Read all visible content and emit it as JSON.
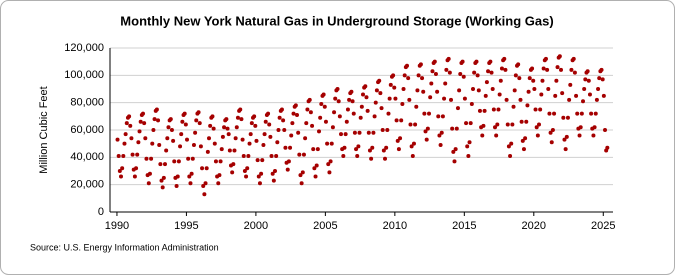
{
  "chart_data": {
    "type": "scatter",
    "title": "Monthly New York Natural Gas in Underground Storage (Working Gas)",
    "y_label": "Million Cubic Feet",
    "source": "Source: U.S. Energy Information Administration",
    "color": "#a50000",
    "grid": true,
    "xlim": [
      1989.5,
      2025.7
    ],
    "ylim": [
      0,
      120000
    ],
    "xticks": [
      1990,
      1995,
      2000,
      2005,
      2010,
      2015,
      2020,
      2025
    ],
    "yticks": [
      0,
      {
        "value": 20000,
        "label": "20,000"
      },
      {
        "value": 40000,
        "label": "40,000"
      },
      {
        "value": 60000,
        "label": "60,000"
      },
      {
        "value": 80000,
        "label": "80,000"
      },
      {
        "value": 100000,
        "label": "100,000"
      },
      {
        "value": 120000,
        "label": "120,000"
      }
    ],
    "x": [
      1990.042,
      1990.125,
      1990.208,
      1990.292,
      1990.375,
      1990.458,
      1990.542,
      1990.625,
      1990.708,
      1990.792,
      1990.875,
      1990.958,
      1991.042,
      1991.125,
      1991.208,
      1991.292,
      1991.375,
      1991.458,
      1991.542,
      1991.625,
      1991.708,
      1991.792,
      1991.875,
      1991.958,
      1992.042,
      1992.125,
      1992.208,
      1992.292,
      1992.375,
      1992.458,
      1992.542,
      1992.625,
      1992.708,
      1992.792,
      1992.875,
      1992.958,
      1993.042,
      1993.125,
      1993.208,
      1993.292,
      1993.375,
      1993.458,
      1993.542,
      1993.625,
      1993.708,
      1993.792,
      1993.875,
      1993.958,
      1994.042,
      1994.125,
      1994.208,
      1994.292,
      1994.375,
      1994.458,
      1994.542,
      1994.625,
      1994.708,
      1994.792,
      1994.875,
      1994.958,
      1995.042,
      1995.125,
      1995.208,
      1995.292,
      1995.375,
      1995.458,
      1995.542,
      1995.625,
      1995.708,
      1995.792,
      1995.875,
      1995.958,
      1996.042,
      1996.125,
      1996.208,
      1996.292,
      1996.375,
      1996.458,
      1996.542,
      1996.625,
      1996.708,
      1996.792,
      1996.875,
      1996.958,
      1997.042,
      1997.125,
      1997.208,
      1997.292,
      1997.375,
      1997.458,
      1997.542,
      1997.625,
      1997.708,
      1997.792,
      1997.875,
      1997.958,
      1998.042,
      1998.125,
      1998.208,
      1998.292,
      1998.375,
      1998.458,
      1998.542,
      1998.625,
      1998.708,
      1998.792,
      1998.875,
      1998.958,
      1999.042,
      1999.125,
      1999.208,
      1999.292,
      1999.375,
      1999.458,
      1999.542,
      1999.625,
      1999.708,
      1999.792,
      1999.875,
      1999.958,
      2000.042,
      2000.125,
      2000.208,
      2000.292,
      2000.375,
      2000.458,
      2000.542,
      2000.625,
      2000.708,
      2000.792,
      2000.875,
      2000.958,
      2001.042,
      2001.125,
      2001.208,
      2001.292,
      2001.375,
      2001.458,
      2001.542,
      2001.625,
      2001.708,
      2001.792,
      2001.875,
      2001.958,
      2002.042,
      2002.125,
      2002.208,
      2002.292,
      2002.375,
      2002.458,
      2002.542,
      2002.625,
      2002.708,
      2002.792,
      2002.875,
      2002.958,
      2003.042,
      2003.125,
      2003.208,
      2003.292,
      2003.375,
      2003.458,
      2003.542,
      2003.625,
      2003.708,
      2003.792,
      2003.875,
      2003.958,
      2004.042,
      2004.125,
      2004.208,
      2004.292,
      2004.375,
      2004.458,
      2004.542,
      2004.625,
      2004.708,
      2004.792,
      2004.875,
      2004.958,
      2005.042,
      2005.125,
      2005.208,
      2005.292,
      2005.375,
      2005.458,
      2005.542,
      2005.625,
      2005.708,
      2005.792,
      2005.875,
      2005.958,
      2006.042,
      2006.125,
      2006.208,
      2006.292,
      2006.375,
      2006.458,
      2006.542,
      2006.625,
      2006.708,
      2006.792,
      2006.875,
      2006.958,
      2007.042,
      2007.125,
      2007.208,
      2007.292,
      2007.375,
      2007.458,
      2007.542,
      2007.625,
      2007.708,
      2007.792,
      2007.875,
      2007.958,
      2008.042,
      2008.125,
      2008.208,
      2008.292,
      2008.375,
      2008.458,
      2008.542,
      2008.625,
      2008.708,
      2008.792,
      2008.875,
      2008.958,
      2009.042,
      2009.125,
      2009.208,
      2009.292,
      2009.375,
      2009.458,
      2009.542,
      2009.625,
      2009.708,
      2009.792,
      2009.875,
      2009.958,
      2010.042,
      2010.125,
      2010.208,
      2010.292,
      2010.375,
      2010.458,
      2010.542,
      2010.625,
      2010.708,
      2010.792,
      2010.875,
      2010.958,
      2011.042,
      2011.125,
      2011.208,
      2011.292,
      2011.375,
      2011.458,
      2011.542,
      2011.625,
      2011.708,
      2011.792,
      2011.875,
      2011.958,
      2012.042,
      2012.125,
      2012.208,
      2012.292,
      2012.375,
      2012.458,
      2012.542,
      2012.625,
      2012.708,
      2012.792,
      2012.875,
      2012.958,
      2013.042,
      2013.125,
      2013.208,
      2013.292,
      2013.375,
      2013.458,
      2013.542,
      2013.625,
      2013.708,
      2013.792,
      2013.875,
      2013.958,
      2014.042,
      2014.125,
      2014.208,
      2014.292,
      2014.375,
      2014.458,
      2014.542,
      2014.625,
      2014.708,
      2014.792,
      2014.875,
      2014.958,
      2015.042,
      2015.125,
      2015.208,
      2015.292,
      2015.375,
      2015.458,
      2015.542,
      2015.625,
      2015.708,
      2015.792,
      2015.875,
      2015.958,
      2016.042,
      2016.125,
      2016.208,
      2016.292,
      2016.375,
      2016.458,
      2016.542,
      2016.625,
      2016.708,
      2016.792,
      2016.875,
      2016.958,
      2017.042,
      2017.125,
      2017.208,
      2017.292,
      2017.375,
      2017.458,
      2017.542,
      2017.625,
      2017.708,
      2017.792,
      2017.875,
      2017.958,
      2018.042,
      2018.125,
      2018.208,
      2018.292,
      2018.375,
      2018.458,
      2018.542,
      2018.625,
      2018.708,
      2018.792,
      2018.875,
      2018.958,
      2019.042,
      2019.125,
      2019.208,
      2019.292,
      2019.375,
      2019.458,
      2019.542,
      2019.625,
      2019.708,
      2019.792,
      2019.875,
      2019.958,
      2020.042,
      2020.125,
      2020.208,
      2020.292,
      2020.375,
      2020.458,
      2020.542,
      2020.625,
      2020.708,
      2020.792,
      2020.875,
      2020.958,
      2021.042,
      2021.125,
      2021.208,
      2021.292,
      2021.375,
      2021.458,
      2021.542,
      2021.625,
      2021.708,
      2021.792,
      2021.875,
      2021.958,
      2022.042,
      2022.125,
      2022.208,
      2022.292,
      2022.375,
      2022.458,
      2022.542,
      2022.625,
      2022.708,
      2022.792,
      2022.875,
      2022.958,
      2023.042,
      2023.125,
      2023.208,
      2023.292,
      2023.375,
      2023.458,
      2023.542,
      2023.625,
      2023.708,
      2023.792,
      2023.875,
      2023.958,
      2024.042,
      2024.125,
      2024.208,
      2024.292,
      2024.375,
      2024.458,
      2024.542,
      2024.625,
      2024.708,
      2024.792,
      2024.875,
      2024.958,
      2025.042,
      2025.125,
      2025.208,
      2025.292
    ],
    "values": [
      53000,
      41000,
      30000,
      26000,
      32000,
      41000,
      50000,
      57000,
      65000,
      69000,
      70000,
      63000,
      54000,
      42000,
      31000,
      26000,
      32000,
      42000,
      51000,
      59000,
      66000,
      71000,
      72000,
      65000,
      54000,
      39000,
      27000,
      21000,
      28000,
      39000,
      50000,
      60000,
      68000,
      74000,
      75000,
      67000,
      49000,
      35000,
      23000,
      18000,
      25000,
      35000,
      45000,
      54000,
      62000,
      67000,
      68000,
      60000,
      52000,
      37000,
      25000,
      19000,
      26000,
      37000,
      48000,
      57000,
      66000,
      71000,
      72000,
      64000,
      53000,
      39000,
      26000,
      21000,
      28000,
      39000,
      49000,
      58000,
      67000,
      72000,
      73000,
      65000,
      48000,
      32000,
      19000,
      13000,
      21000,
      32000,
      44000,
      54000,
      63000,
      69000,
      70000,
      61000,
      50000,
      37000,
      26000,
      21000,
      27000,
      37000,
      46000,
      55000,
      62000,
      67000,
      68000,
      61000,
      57000,
      45000,
      34000,
      29000,
      35000,
      45000,
      54000,
      62000,
      69000,
      74000,
      75000,
      68000,
      53000,
      41000,
      30000,
      26000,
      32000,
      41000,
      50000,
      57000,
      65000,
      69000,
      70000,
      63000,
      52000,
      38000,
      26000,
      21000,
      28000,
      38000,
      49000,
      57000,
      66000,
      71000,
      72000,
      64000,
      55000,
      41000,
      28000,
      23000,
      30000,
      41000,
      51000,
      60000,
      69000,
      74000,
      75000,
      67000,
      60000,
      47000,
      36000,
      31000,
      37000,
      47000,
      56000,
      65000,
      72000,
      77000,
      78000,
      71000,
      58000,
      42000,
      27000,
      21000,
      29000,
      42000,
      54000,
      65000,
      75000,
      81000,
      82000,
      73000,
      63000,
      46000,
      32000,
      26000,
      34000,
      46000,
      59000,
      69000,
      79000,
      85000,
      86000,
      77000,
      66000,
      50000,
      35000,
      29000,
      37000,
      50000,
      62000,
      73000,
      83000,
      89000,
      90000,
      81000,
      70000,
      57000,
      46000,
      41000,
      47000,
      57000,
      66000,
      75000,
      82000,
      87000,
      88000,
      81000,
      72000,
      58000,
      46000,
      41000,
      48000,
      58000,
      69000,
      77000,
      86000,
      91000,
      92000,
      84000,
      74000,
      58000,
      45000,
      39000,
      47000,
      58000,
      70000,
      80000,
      89000,
      95000,
      96000,
      87000,
      76000,
      60000,
      45000,
      39000,
      47000,
      60000,
      72000,
      83000,
      93000,
      99000,
      100000,
      91000,
      83000,
      67000,
      52000,
      46000,
      54000,
      67000,
      79000,
      90000,
      100000,
      106000,
      107000,
      98000,
      82000,
      64000,
      48000,
      41000,
      50000,
      64000,
      77000,
      89000,
      100000,
      107000,
      108000,
      98000,
      88000,
      72000,
      59000,
      53000,
      61000,
      72000,
      84000,
      94000,
      103000,
      109000,
      110000,
      101000,
      88000,
      70000,
      56000,
      49000,
      58000,
      70000,
      83000,
      94000,
      104000,
      111000,
      112000,
      102000,
      82000,
      61000,
      44000,
      37000,
      46000,
      61000,
      76000,
      89000,
      101000,
      109000,
      110000,
      99000,
      83000,
      65000,
      48000,
      41000,
      51000,
      65000,
      79000,
      90000,
      102000,
      109000,
      110000,
      100000,
      89000,
      74000,
      62000,
      56000,
      63000,
      74000,
      85000,
      95000,
      103000,
      109000,
      110000,
      102000,
      90000,
      75000,
      62000,
      56000,
      64000,
      75000,
      86000,
      96000,
      105000,
      111000,
      112000,
      104000,
      82000,
      64000,
      48000,
      41000,
      50000,
      64000,
      77000,
      89000,
      100000,
      107000,
      108000,
      98000,
      82000,
      66000,
      52000,
      46000,
      54000,
      66000,
      78000,
      88000,
      98000,
      104000,
      105000,
      96000,
      90000,
      75000,
      62000,
      56000,
      64000,
      75000,
      86000,
      96000,
      105000,
      111000,
      112000,
      104000,
      90000,
      72000,
      58000,
      51000,
      60000,
      72000,
      85000,
      96000,
      106000,
      113000,
      114000,
      104000,
      87000,
      69000,
      53000,
      46000,
      55000,
      69000,
      82000,
      93000,
      104000,
      111000,
      112000,
      102000,
      85000,
      72000,
      61000,
      56000,
      62000,
      72000,
      81000,
      90000,
      97000,
      102000,
      103000,
      96000,
      86000,
      72000,
      61000,
      56000,
      62000,
      72000,
      82000,
      90000,
      98000,
      103000,
      104000,
      97000,
      85000,
      60000,
      45000,
      47000
    ]
  }
}
